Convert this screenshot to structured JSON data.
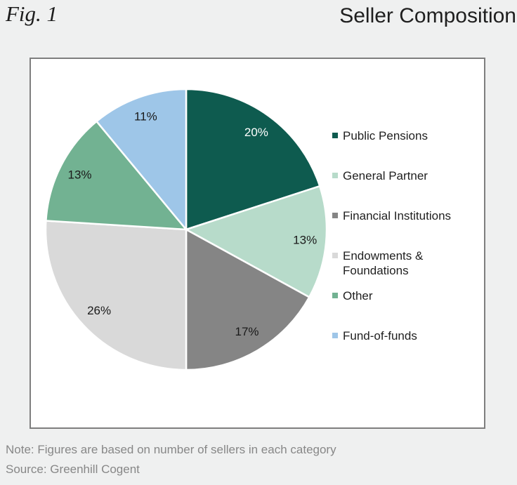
{
  "page": {
    "fig_label": "Fig. 1",
    "title": "Seller Composition"
  },
  "chart_data": {
    "type": "pie",
    "title": "Seller Composition",
    "start_angle_deg": 0,
    "direction": "clockwise",
    "labels_format": "percent",
    "legend_position": "right",
    "separator_color": "#ffffff",
    "slices": [
      {
        "label": "Public Pensions",
        "value": 20,
        "display": "20%",
        "color": "#0e5b4f",
        "label_color": "#ffffff"
      },
      {
        "label": "General Partner",
        "value": 13,
        "display": "13%",
        "color": "#b7dbca",
        "label_color": "#1a1a1a"
      },
      {
        "label": "Financial Institutions",
        "value": 17,
        "display": "17%",
        "color": "#858585",
        "label_color": "#1a1a1a"
      },
      {
        "label": "Endowments & Foundations",
        "value": 26,
        "display": "26%",
        "color": "#d9d9d9",
        "label_color": "#1a1a1a"
      },
      {
        "label": "Other",
        "value": 13,
        "display": "13%",
        "color": "#72b292",
        "label_color": "#1a1a1a"
      },
      {
        "label": "Fund-of-funds",
        "value": 11,
        "display": "11%",
        "color": "#9ec6e8",
        "label_color": "#1a1a1a"
      }
    ]
  },
  "footer": {
    "note": "Note: Figures are based on number of sellers in each category",
    "source": "Source: Greenhill Cogent"
  }
}
